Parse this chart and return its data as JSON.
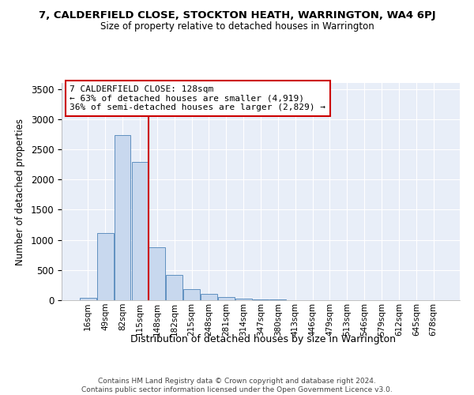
{
  "title1": "7, CALDERFIELD CLOSE, STOCKTON HEATH, WARRINGTON, WA4 6PJ",
  "title2": "Size of property relative to detached houses in Warrington",
  "xlabel": "Distribution of detached houses by size in Warrington",
  "ylabel": "Number of detached properties",
  "bar_color": "#c8d8ee",
  "bar_edge_color": "#6090c0",
  "categories": [
    "16sqm",
    "49sqm",
    "82sqm",
    "115sqm",
    "148sqm",
    "182sqm",
    "215sqm",
    "248sqm",
    "281sqm",
    "314sqm",
    "347sqm",
    "380sqm",
    "413sqm",
    "446sqm",
    "479sqm",
    "513sqm",
    "546sqm",
    "579sqm",
    "612sqm",
    "645sqm",
    "678sqm"
  ],
  "values": [
    45,
    1110,
    2740,
    2290,
    875,
    420,
    185,
    105,
    50,
    30,
    15,
    8,
    4,
    2,
    0,
    0,
    0,
    0,
    0,
    0,
    0
  ],
  "vline_color": "#cc0000",
  "vline_pos": 3.5,
  "annotation_line1": "7 CALDERFIELD CLOSE: 128sqm",
  "annotation_line2": "← 63% of detached houses are smaller (4,919)",
  "annotation_line3": "36% of semi-detached houses are larger (2,829) →",
  "ylim": [
    0,
    3600
  ],
  "yticks": [
    0,
    500,
    1000,
    1500,
    2000,
    2500,
    3000,
    3500
  ],
  "plot_bg_color": "#e8eef8",
  "footer1": "Contains HM Land Registry data © Crown copyright and database right 2024.",
  "footer2": "Contains public sector information licensed under the Open Government Licence v3.0."
}
